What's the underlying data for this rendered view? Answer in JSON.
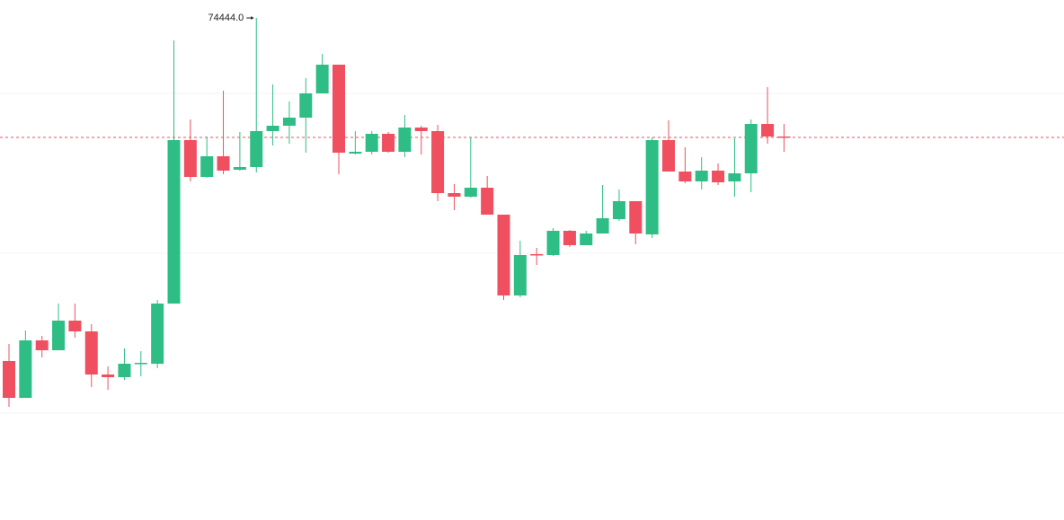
{
  "chart_data": {
    "type": "candlestick",
    "open": [
      62220,
      60908,
      62956,
      62604,
      63660,
      63276,
      61740,
      61644,
      62124,
      62124,
      64268,
      70092,
      68780,
      69516,
      69036,
      69132,
      70412,
      70604,
      70892,
      71756,
      72780,
      69612,
      69676,
      70316,
      69676,
      70540,
      70412,
      68204,
      68076,
      68396,
      67436,
      64556,
      66028,
      65996,
      66860,
      66348,
      66764,
      67276,
      67916,
      66732,
      70092,
      68972,
      68620,
      69004,
      68620,
      68908,
      70668,
      70220
    ],
    "high": [
      62828,
      63308,
      63116,
      64268,
      64268,
      63532,
      62028,
      62668,
      62572,
      64396,
      73644,
      70828,
      70220,
      71852,
      70380,
      74444,
      72076,
      71468,
      72300,
      73164,
      72780,
      70412,
      70412,
      70380,
      70988,
      70604,
      70636,
      68524,
      70188,
      68812,
      67436,
      66508,
      66252,
      66956,
      66892,
      66860,
      68492,
      68332,
      67916,
      70188,
      70796,
      69836,
      69484,
      69260,
      70156,
      70828,
      71980,
      70668
    ],
    "low": [
      60588,
      60908,
      62348,
      62604,
      63052,
      61292,
      61196,
      61548,
      61676,
      61964,
      64268,
      68620,
      68748,
      68876,
      69004,
      68940,
      69900,
      69964,
      69644,
      71756,
      68876,
      69580,
      69580,
      69644,
      69484,
      69580,
      67916,
      67596,
      68044,
      67436,
      64396,
      64492,
      65644,
      65964,
      66284,
      66348,
      66764,
      67212,
      66380,
      66604,
      68972,
      68556,
      68332,
      68492,
      68076,
      68236,
      69964,
      69676
    ],
    "close": [
      60908,
      62956,
      62604,
      63660,
      63276,
      61740,
      61644,
      62124,
      62156,
      64268,
      70092,
      68780,
      69516,
      69004,
      69132,
      70412,
      70604,
      70892,
      71756,
      72780,
      69644,
      69676,
      70316,
      69676,
      70540,
      70412,
      68204,
      68076,
      68396,
      67436,
      64556,
      65996,
      65996,
      66860,
      66348,
      66764,
      67308,
      67916,
      66764,
      70092,
      68972,
      68620,
      69004,
      68588,
      68908,
      70668,
      70220,
      70188
    ],
    "up_color": "#2ebd85",
    "down_color": "#ef4f5e",
    "ylim": [
      56556,
      75084
    ],
    "annotation": {
      "value": 74444,
      "label": "74444.0"
    }
  }
}
